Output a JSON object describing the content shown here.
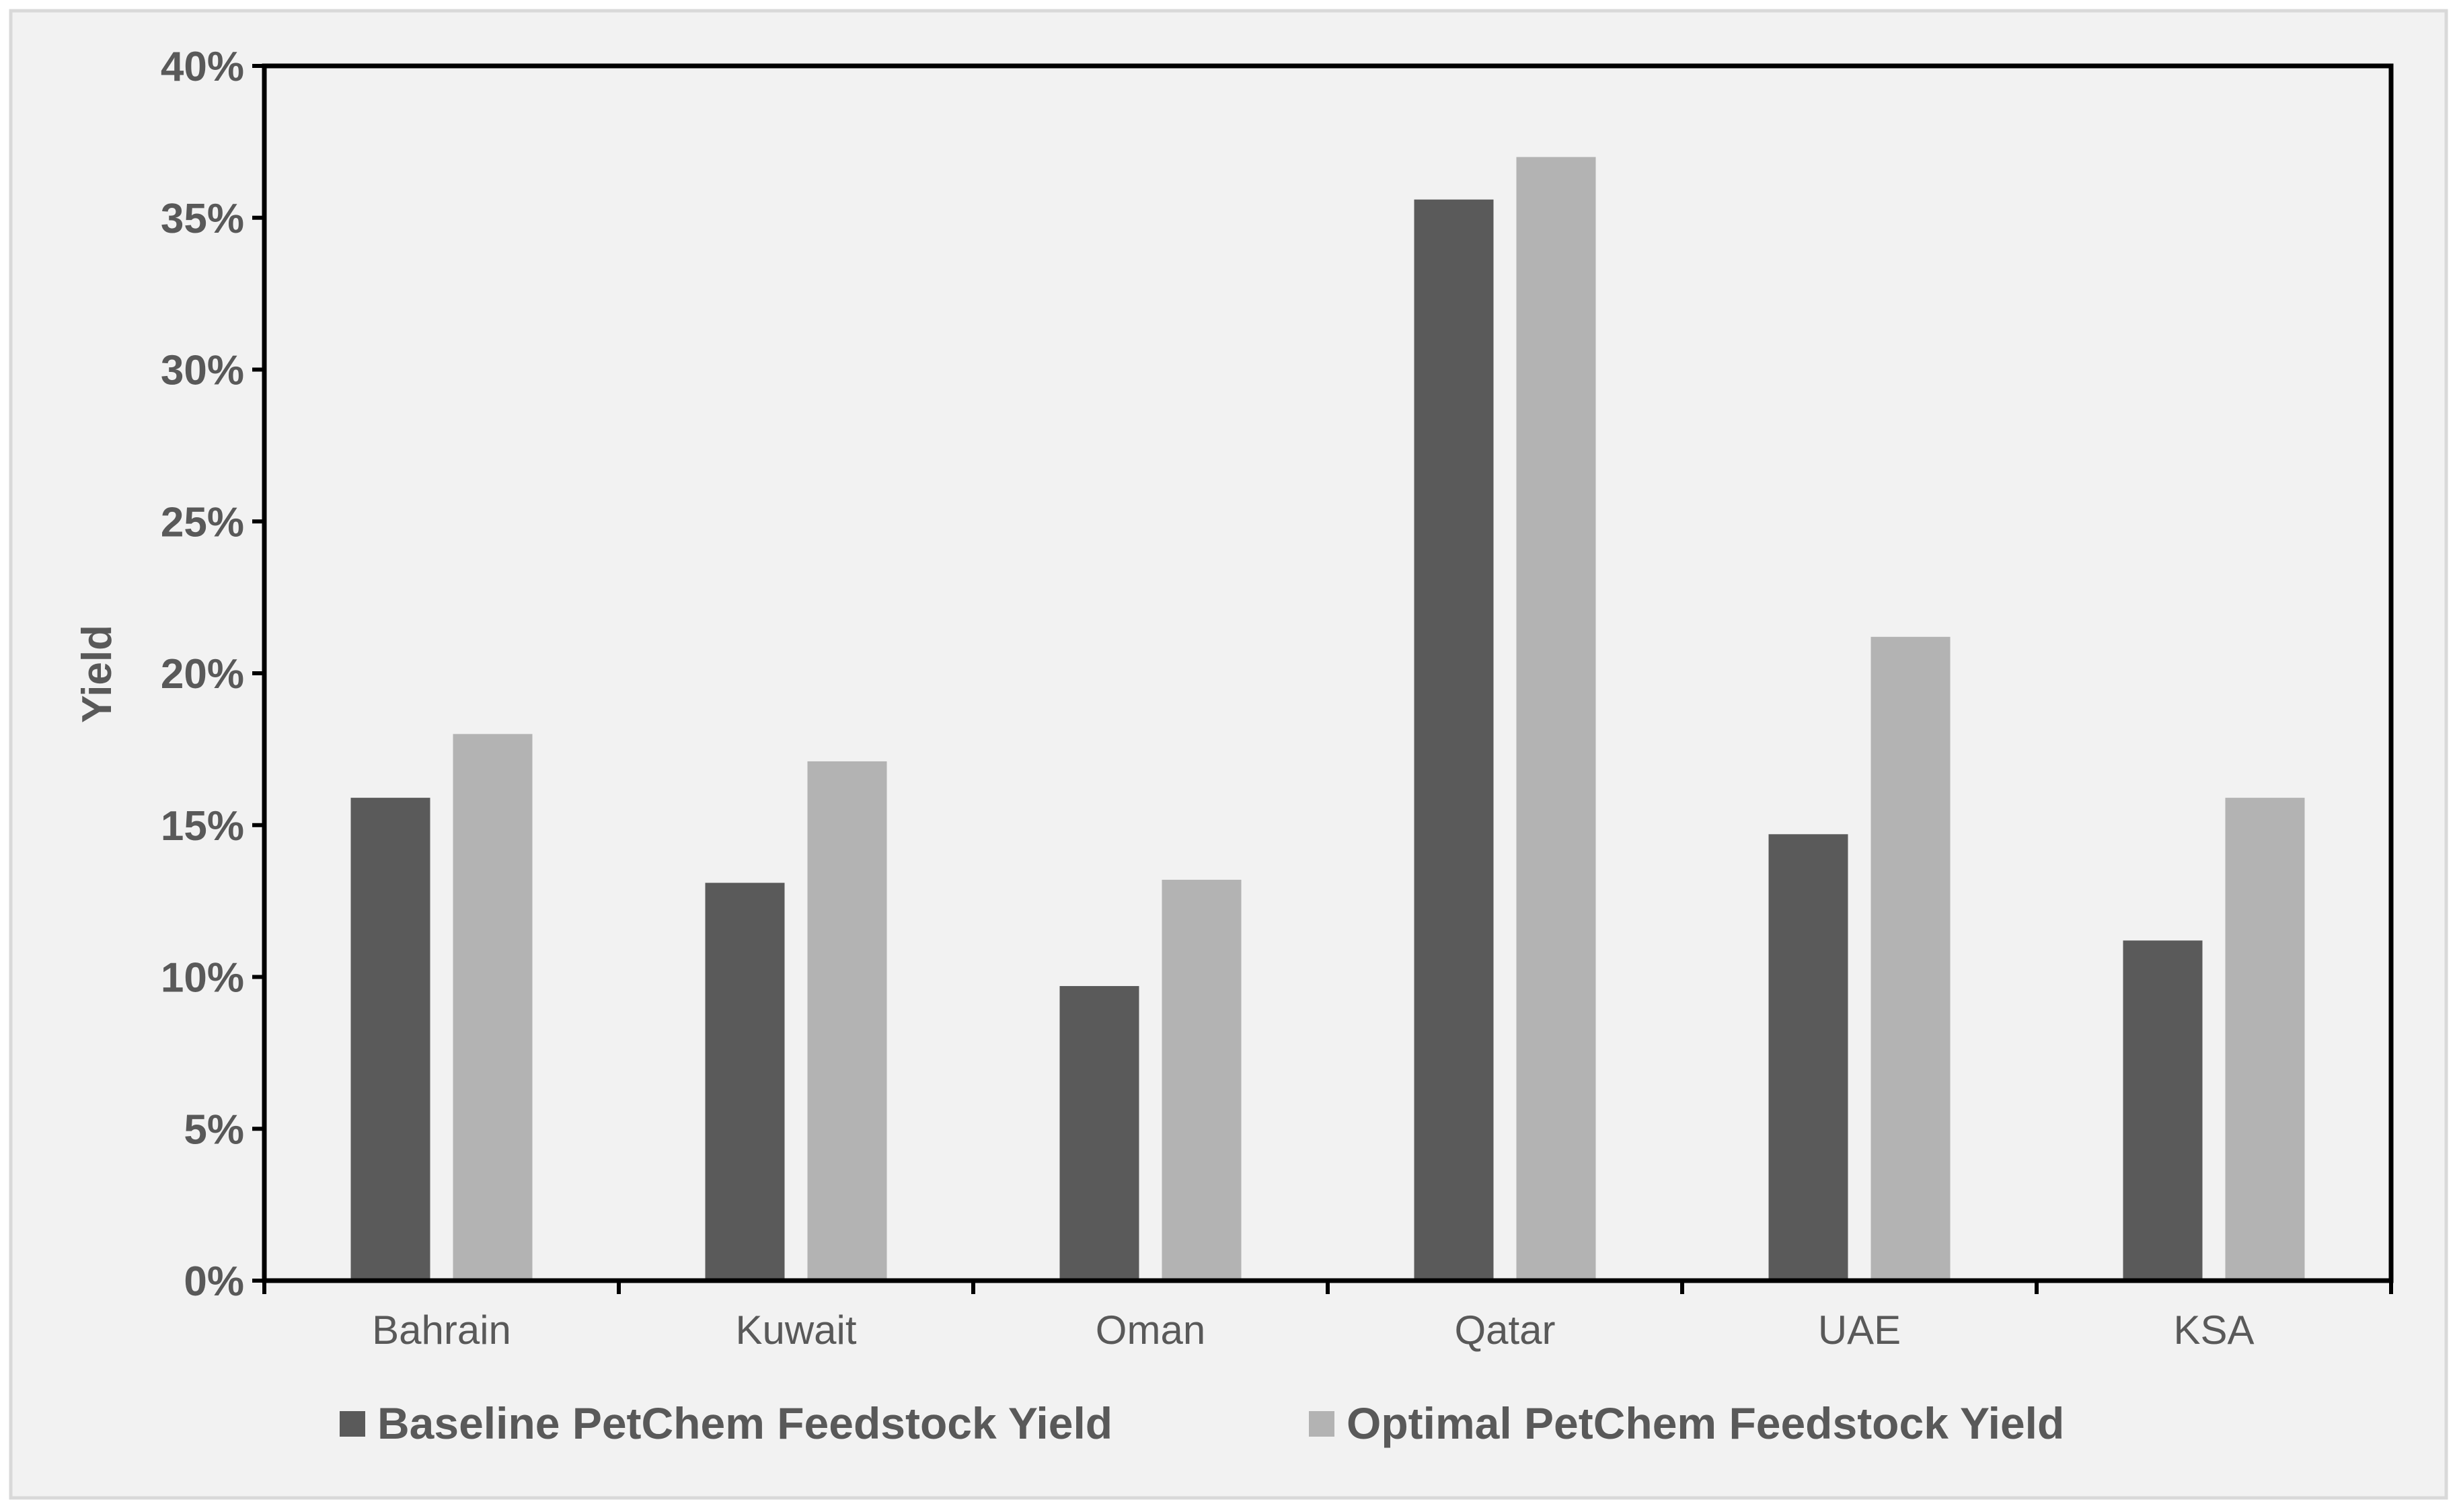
{
  "chart_data": {
    "type": "bar",
    "title": "",
    "xlabel": "",
    "ylabel": "Yield",
    "ylim": [
      0,
      0.4
    ],
    "y_ticks": [
      "0%",
      "5%",
      "10%",
      "15%",
      "20%",
      "25%",
      "30%",
      "35%",
      "40%"
    ],
    "categories": [
      "Bahrain",
      "Kuwait",
      "Oman",
      "Qatar",
      "UAE",
      "KSA"
    ],
    "series": [
      {
        "name": "Baseline PetChem Feedstock Yield",
        "color": "#5a5a5a",
        "values": [
          0.159,
          0.131,
          0.097,
          0.356,
          0.147,
          0.112
        ]
      },
      {
        "name": "Optimal PetChem Feedstock Yield",
        "color": "#b3b3b3",
        "values": [
          0.18,
          0.171,
          0.132,
          0.37,
          0.212,
          0.159
        ]
      }
    ],
    "grid": false,
    "legend_position": "bottom"
  },
  "colors": {
    "background": "#f2f2f2",
    "frame": "#d9d9d9",
    "axis": "#000000",
    "text": "#595959"
  }
}
